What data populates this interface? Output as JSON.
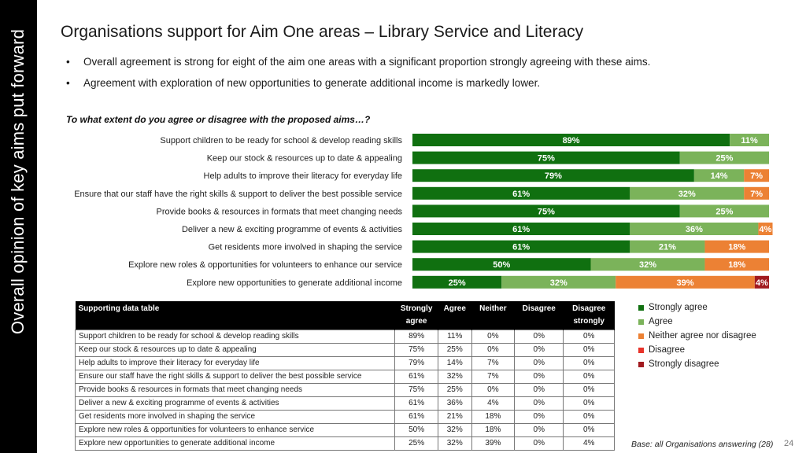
{
  "sidebar": {
    "text": "Overall opinion of key aims put forward"
  },
  "title": "Organisations support for Aim One areas – Library Service and Literacy",
  "bullets": [
    "Overall agreement is strong for eight of the aim one areas with a significant proportion strongly agreeing with these aims.",
    "Agreement with exploration of new opportunities to generate additional income is markedly lower."
  ],
  "question": "To what extent do you agree or disagree with the proposed aims…?",
  "colors": {
    "strongly_agree": "#107010",
    "agree": "#7bb35a",
    "neither": "#ec8134",
    "disagree": "#e8332a",
    "strongly_disagree": "#a11a1f"
  },
  "chart_data": {
    "type": "bar",
    "orientation": "horizontal",
    "stacked": true,
    "unit": "%",
    "xlim": [
      0,
      100
    ],
    "categories": [
      "Support children to be ready for school & develop reading skills",
      "Keep our stock & resources up to date & appealing",
      "Help adults to improve their literacy for everyday life",
      "Ensure that our staff have the right skills & support to deliver the best possible service",
      "Provide books & resources in formats that meet changing needs",
      "Deliver a new & exciting programme of events & activities",
      "Get residents more involved in shaping the service",
      "Explore new roles & opportunities for volunteers to enhance our service",
      "Explore new opportunities to generate additional income"
    ],
    "series": [
      {
        "name": "Strongly agree",
        "key": "strongly_agree",
        "values": [
          89,
          75,
          79,
          61,
          75,
          61,
          61,
          50,
          25
        ]
      },
      {
        "name": "Agree",
        "key": "agree",
        "values": [
          11,
          25,
          14,
          32,
          25,
          36,
          21,
          32,
          32
        ]
      },
      {
        "name": "Neither agree nor disagree",
        "key": "neither",
        "values": [
          0,
          0,
          7,
          7,
          0,
          4,
          18,
          18,
          39
        ]
      },
      {
        "name": "Disagree",
        "key": "disagree",
        "values": [
          0,
          0,
          0,
          0,
          0,
          0,
          0,
          0,
          0
        ]
      },
      {
        "name": "Strongly disagree",
        "key": "strongly_disagree",
        "values": [
          0,
          0,
          0,
          0,
          0,
          0,
          0,
          0,
          4
        ]
      }
    ],
    "legend_position": "right"
  },
  "table": {
    "headers": [
      "Supporting data table",
      "Strongly agree",
      "Agree",
      "Neither",
      "Disagree",
      "Disagree strongly"
    ],
    "rows": [
      [
        "Support children to be ready for school & develop reading skills",
        "89%",
        "11%",
        "0%",
        "0%",
        "0%"
      ],
      [
        "Keep our stock & resources up to date & appealing",
        "75%",
        "25%",
        "0%",
        "0%",
        "0%"
      ],
      [
        "Help adults to improve their literacy for everyday life",
        "79%",
        "14%",
        "7%",
        "0%",
        "0%"
      ],
      [
        "Ensure our staff have the right skills & support to deliver the best possible service",
        "61%",
        "32%",
        "7%",
        "0%",
        "0%"
      ],
      [
        "Provide books & resources in formats that meet changing needs",
        "75%",
        "25%",
        "0%",
        "0%",
        "0%"
      ],
      [
        "Deliver a new & exciting programme of events & activities",
        "61%",
        "36%",
        "4%",
        "0%",
        "0%"
      ],
      [
        "Get residents more involved in shaping the service",
        "61%",
        "21%",
        "18%",
        "0%",
        "0%"
      ],
      [
        "Explore new roles & opportunities for volunteers to enhance service",
        "50%",
        "32%",
        "18%",
        "0%",
        "0%"
      ],
      [
        "Explore new opportunities to generate additional income",
        "25%",
        "32%",
        "39%",
        "0%",
        "4%"
      ]
    ]
  },
  "base_note": "Base: all Organisations answering (28)",
  "page_number": "24"
}
